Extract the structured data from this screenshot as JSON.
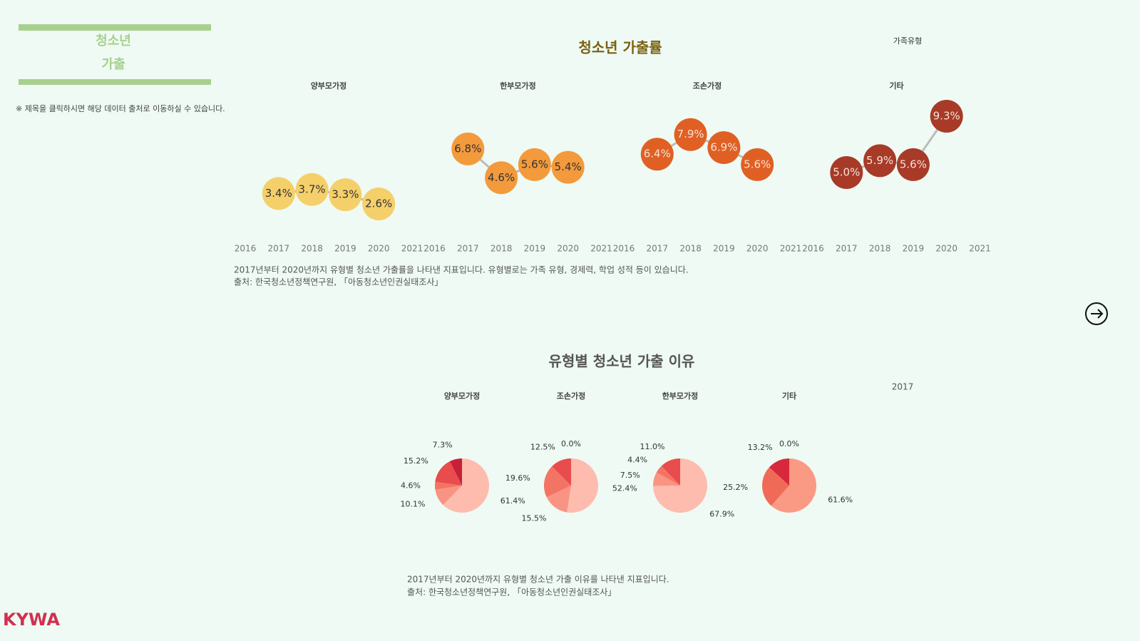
{
  "header": {
    "title_lines": [
      "청소년",
      "가출"
    ],
    "note": "※ 제목을 클릭하시면 해당 데이터 출처로 이동하실 수 있습니다."
  },
  "logo": "KYWA",
  "chart_data": [
    {
      "type": "line",
      "title": "청소년 가출률",
      "legend_title": "가족유형",
      "x": [
        2017,
        2018,
        2019,
        2020
      ],
      "xlim": [
        2016,
        2021
      ],
      "xticks": [
        2016,
        2017,
        2018,
        2019,
        2020,
        2021
      ],
      "series": [
        {
          "name": "양부모가정",
          "color": "#f5d06a",
          "values": [
            3.4,
            3.7,
            3.3,
            2.6
          ],
          "value_labels": [
            "3.4%",
            "3.7%",
            "3.3%",
            "2.6%"
          ]
        },
        {
          "name": "한부모가정",
          "color": "#f39a3c",
          "values": [
            6.8,
            4.6,
            5.6,
            5.4
          ],
          "value_labels": [
            "6.8%",
            "4.6%",
            "5.6%",
            "5.4%"
          ]
        },
        {
          "name": "조손가정",
          "color": "#e06024",
          "values": [
            6.4,
            7.9,
            6.9,
            5.6
          ],
          "value_labels": [
            "6.4%",
            "7.9%",
            "6.9%",
            "5.6%"
          ]
        },
        {
          "name": "기타",
          "color": "#a83a28",
          "values": [
            5.0,
            5.9,
            5.6,
            9.3
          ],
          "value_labels": [
            "5.0%",
            "5.9%",
            "5.6%",
            "9.3%"
          ]
        }
      ],
      "notes": [
        "2017년부터 2020년까지 유형별 청소년 가출률을 나타낸 지표입니다. 유형별로는 가족 유형, 경제력, 학업 성적 등이 있습니다.",
        "출처: 한국청소년정책연구원, 「아동청소년인권실태조사」"
      ]
    },
    {
      "type": "pie",
      "title": "유형별 청소년 가출 이유",
      "filter": "2017",
      "series": [
        {
          "name": "양부모가정",
          "values": [
            61.4,
            10.1,
            4.6,
            15.2,
            7.3
          ],
          "value_labels": [
            "61.4%",
            "10.1%",
            "4.6%",
            "15.2%",
            "7.3%"
          ],
          "colors": [
            "#fdbcae",
            "#f99484",
            "#f47464",
            "#e84c4c",
            "#c8203a"
          ]
        },
        {
          "name": "조손가정",
          "values": [
            52.4,
            15.5,
            19.6,
            12.5,
            0.0
          ],
          "value_labels": [
            "52.4%",
            "15.5%",
            "19.6%",
            "12.5%",
            "0.0%"
          ],
          "colors": [
            "#fdbcae",
            "#f99484",
            "#f47464",
            "#e84c4c",
            "#c8203a"
          ]
        },
        {
          "name": "한부모가정",
          "values": [
            67.9,
            7.5,
            4.4,
            11.0
          ],
          "value_labels": [
            "67.9%",
            "7.5%",
            "4.4%",
            "11.0%"
          ],
          "colors": [
            "#fdbcae",
            "#f99484",
            "#f47464",
            "#e84c4c"
          ]
        },
        {
          "name": "기타",
          "values": [
            61.6,
            25.2,
            13.2,
            0.0
          ],
          "value_labels": [
            "61.6%",
            "25.2%",
            "13.2%",
            "0.0%"
          ],
          "colors": [
            "#fb9a84",
            "#f06a58",
            "#d8283c",
            "#b01830"
          ]
        }
      ],
      "notes": [
        "2017년부터 2020년까지 유형별 청소년 가출 이유를 나타낸 지표입니다.",
        "출처: 한국청소년정책연구원, 「아동청소년인권실태조사」"
      ]
    }
  ]
}
